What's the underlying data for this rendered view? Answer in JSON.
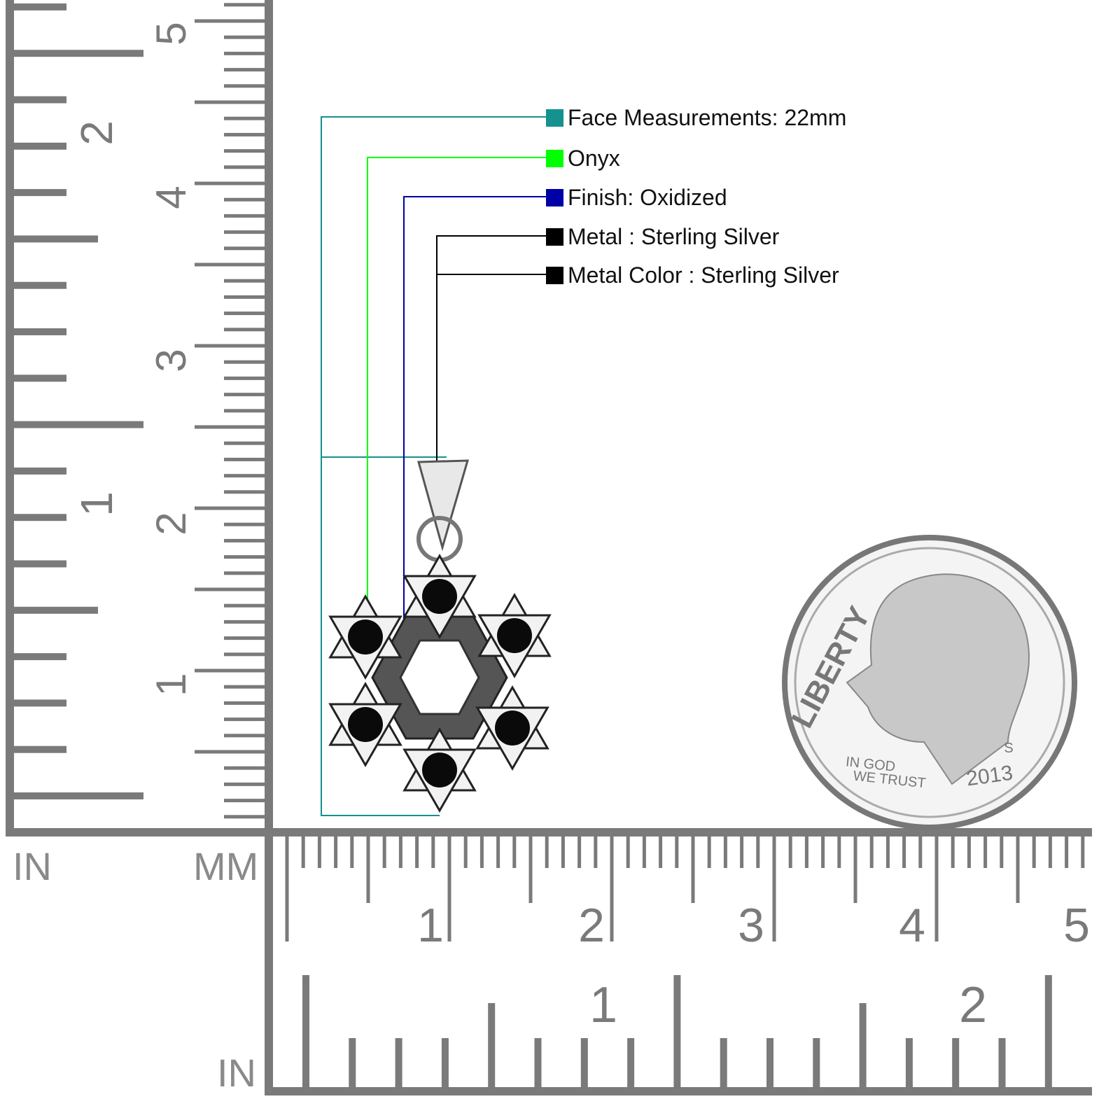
{
  "specs": [
    {
      "label": "Face Measurements: 22mm",
      "color": "#15918f"
    },
    {
      "label": "Onyx",
      "color": "#00ff00"
    },
    {
      "label": "Finish: Oxidized",
      "color": "#0000a8"
    },
    {
      "label": "Metal : Sterling Silver",
      "color": "#000000"
    },
    {
      "label": "Metal Color : Sterling Silver",
      "color": "#000000"
    }
  ],
  "rulers": {
    "left_in_label": "IN",
    "mm_label": "MM",
    "bottom_in_label": "IN",
    "left_inch_numbers": [
      "2",
      "1"
    ],
    "left_mm_numbers": [
      "5",
      "4",
      "3",
      "2",
      "1"
    ],
    "bottom_mm_numbers": [
      "1",
      "2",
      "3",
      "4",
      "5"
    ],
    "bottom_inch_numbers": [
      "1",
      "2"
    ],
    "color": "#7a7a7a"
  },
  "coin": {
    "legend": "LIBERTY",
    "motto_1": "IN GOD",
    "motto_2": "WE TRUST",
    "year": "2013",
    "mint": "S"
  }
}
